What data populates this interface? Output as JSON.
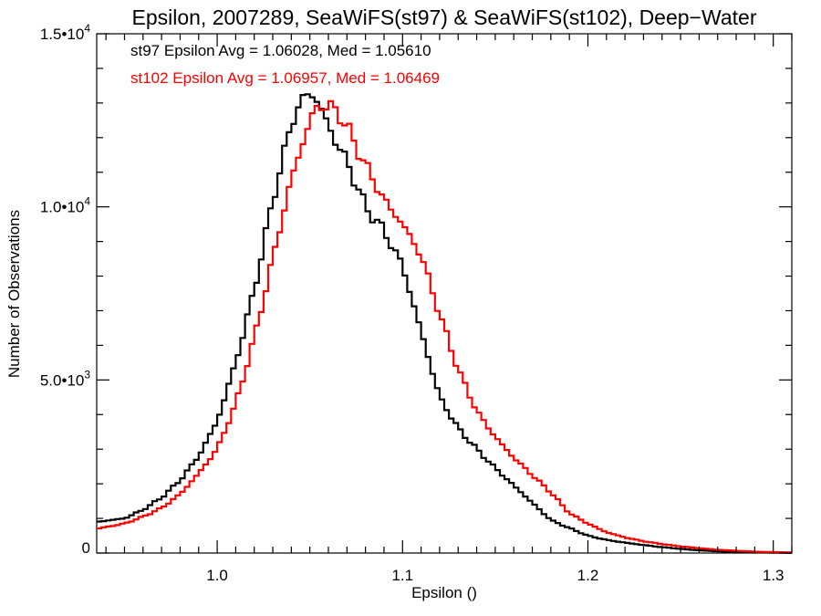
{
  "chart_data": {
    "type": "line",
    "title": "Epsilon, 2007289, SeaWiFS(st97) & SeaWiFS(st102), Deep−Water",
    "xlabel": "Epsilon ()",
    "ylabel": "Number of Observations",
    "xlim": [
      0.935,
      1.31
    ],
    "ylim": [
      0,
      15000
    ],
    "x_ticks": [
      {
        "value": 1.0,
        "label": "1.0"
      },
      {
        "value": 1.1,
        "label": "1.1"
      },
      {
        "value": 1.2,
        "label": "1.2"
      },
      {
        "value": 1.3,
        "label": "1.3"
      }
    ],
    "y_ticks": [
      {
        "value": 0,
        "mantissa": "0",
        "exp": ""
      },
      {
        "value": 5000,
        "mantissa": "5.0•10",
        "exp": "3"
      },
      {
        "value": 10000,
        "mantissa": "1.0•10",
        "exp": "4"
      },
      {
        "value": 15000,
        "mantissa": "1.5•10",
        "exp": "4"
      }
    ],
    "grid": false,
    "series": [
      {
        "label": "st97 Epsilon Avg = 1.06028, Med = 1.05610",
        "color": "#000000",
        "points": [
          [
            0.935,
            900
          ],
          [
            0.95,
            1000
          ],
          [
            0.96,
            1250
          ],
          [
            0.97,
            1600
          ],
          [
            0.98,
            2100
          ],
          [
            0.99,
            2800
          ],
          [
            1.0,
            3800
          ],
          [
            1.01,
            5500
          ],
          [
            1.02,
            7600
          ],
          [
            1.03,
            10200
          ],
          [
            1.04,
            12400
          ],
          [
            1.045,
            13050
          ],
          [
            1.05,
            13300
          ],
          [
            1.055,
            13000
          ],
          [
            1.06,
            12300
          ],
          [
            1.07,
            11300
          ],
          [
            1.08,
            10000
          ],
          [
            1.09,
            9300
          ],
          [
            1.1,
            8300
          ],
          [
            1.11,
            6400
          ],
          [
            1.12,
            4500
          ],
          [
            1.13,
            3600
          ],
          [
            1.14,
            3000
          ],
          [
            1.15,
            2450
          ],
          [
            1.16,
            1950
          ],
          [
            1.17,
            1450
          ],
          [
            1.18,
            950
          ],
          [
            1.19,
            720
          ],
          [
            1.2,
            500
          ],
          [
            1.21,
            380
          ],
          [
            1.22,
            300
          ],
          [
            1.23,
            230
          ],
          [
            1.24,
            170
          ],
          [
            1.25,
            120
          ],
          [
            1.26,
            80
          ],
          [
            1.27,
            50
          ],
          [
            1.28,
            30
          ],
          [
            1.29,
            20
          ],
          [
            1.31,
            5
          ]
        ]
      },
      {
        "label": "st102 Epsilon Avg = 1.06957, Med = 1.06469",
        "color": "#ff0000",
        "points": [
          [
            0.935,
            700
          ],
          [
            0.95,
            850
          ],
          [
            0.96,
            1050
          ],
          [
            0.97,
            1300
          ],
          [
            0.98,
            1700
          ],
          [
            0.99,
            2300
          ],
          [
            1.0,
            3000
          ],
          [
            1.01,
            4300
          ],
          [
            1.02,
            6200
          ],
          [
            1.03,
            8500
          ],
          [
            1.04,
            10800
          ],
          [
            1.05,
            12500
          ],
          [
            1.055,
            12950
          ],
          [
            1.06,
            12900
          ],
          [
            1.065,
            12750
          ],
          [
            1.07,
            12300
          ],
          [
            1.08,
            11200
          ],
          [
            1.09,
            10200
          ],
          [
            1.1,
            9500
          ],
          [
            1.11,
            8600
          ],
          [
            1.12,
            6900
          ],
          [
            1.13,
            5300
          ],
          [
            1.14,
            4100
          ],
          [
            1.15,
            3350
          ],
          [
            1.16,
            2750
          ],
          [
            1.17,
            2250
          ],
          [
            1.18,
            1750
          ],
          [
            1.19,
            1150
          ],
          [
            1.2,
            850
          ],
          [
            1.21,
            600
          ],
          [
            1.22,
            450
          ],
          [
            1.23,
            340
          ],
          [
            1.24,
            260
          ],
          [
            1.25,
            190
          ],
          [
            1.26,
            140
          ],
          [
            1.27,
            95
          ],
          [
            1.28,
            65
          ],
          [
            1.29,
            40
          ],
          [
            1.31,
            15
          ]
        ]
      }
    ]
  }
}
